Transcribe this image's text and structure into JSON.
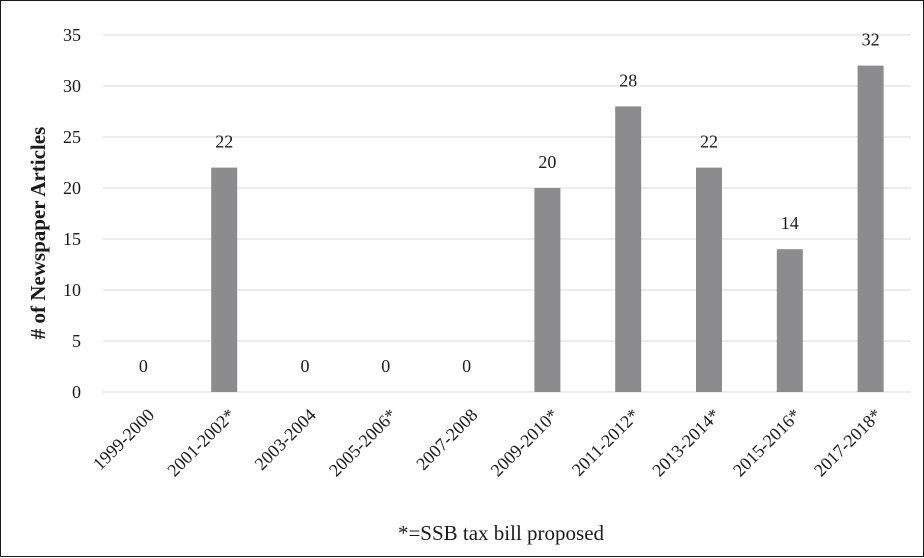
{
  "chart_data": {
    "type": "bar",
    "categories": [
      "1999-2000",
      "2001-2002*",
      "2003-2004",
      "2005-2006*",
      "2007-2008",
      "2009-2010*",
      "2011-2012*",
      "2013-2014*",
      "2015-2016*",
      "2017-2018*"
    ],
    "values": [
      0,
      22,
      0,
      0,
      0,
      20,
      28,
      22,
      14,
      32
    ],
    "title": "",
    "xlabel": "*=SSB tax bill proposed",
    "ylabel": "# of Newspaper Articles",
    "ylim": [
      0,
      35
    ],
    "yticks": [
      0,
      5,
      10,
      15,
      20,
      25,
      30,
      35
    ],
    "grid": true,
    "bar_color": "#8c8c8e",
    "data_labels": true
  }
}
